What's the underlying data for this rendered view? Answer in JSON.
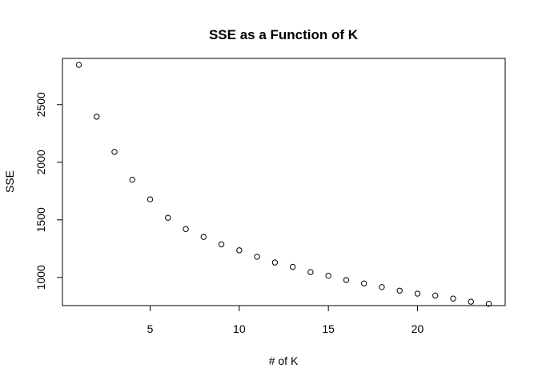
{
  "chart_data": {
    "type": "scatter",
    "title": "SSE as a Function of K",
    "xlabel": "# of K",
    "ylabel": "SSE",
    "xlim": [
      0.08,
      24.92
    ],
    "ylim": [
      756,
      2901
    ],
    "x_ticks": [
      5,
      10,
      15,
      20
    ],
    "y_ticks": [
      1000,
      1500,
      2000,
      2500
    ],
    "grid": false,
    "legend": "none",
    "marker": "open-circle",
    "series": [
      {
        "x": [
          1,
          2,
          3,
          4,
          5,
          6,
          7,
          8,
          9,
          10,
          11,
          12,
          13,
          14,
          15,
          16,
          17,
          18,
          19,
          20,
          21,
          22,
          23,
          24
        ],
        "y": [
          2845,
          2395,
          2090,
          1848,
          1678,
          1518,
          1420,
          1352,
          1287,
          1236,
          1180,
          1130,
          1092,
          1047,
          1015,
          978,
          948,
          917,
          886,
          860,
          843,
          817,
          790,
          772
        ]
      }
    ]
  }
}
